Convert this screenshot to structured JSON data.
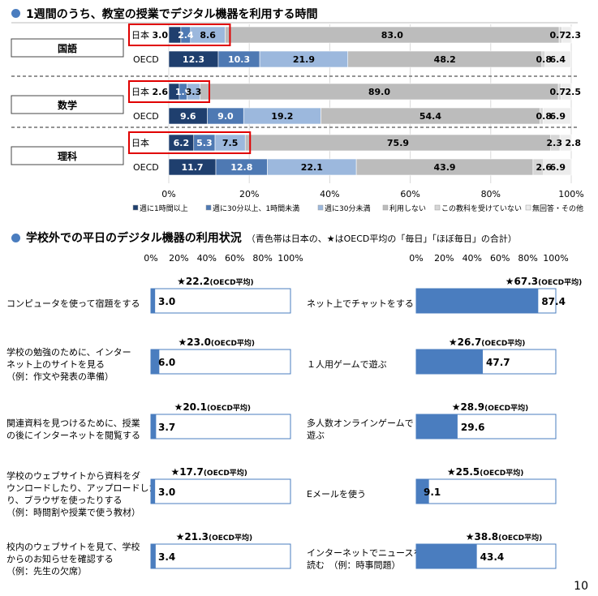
{
  "section1": {
    "title": "1週間のうち、教室の授業でデジタル機器を利用する時間"
  },
  "section2": {
    "title": "学校外での平日のデジタル機器の利用状況",
    "note": "（青色帯は日本の、★はOECD平均の「毎日」「ほぼ毎日」の合計）"
  },
  "page_number": "10",
  "colors": {
    "c1": "#1f3f6e",
    "c2": "#4e79b3",
    "c3": "#9cb8dd",
    "c4": "#bcbcbc",
    "c5": "#d6d6d6",
    "c6": "#ececec",
    "blue": "#4a7dbf",
    "highlight": "#e00000"
  },
  "chart_data": [
    {
      "type": "bar",
      "stacked": true,
      "orientation": "horizontal",
      "title": "1週間のうち、教室の授業でデジタル機器を利用する時間",
      "xlim": [
        0,
        100
      ],
      "x_ticks": [
        "0%",
        "20%",
        "40%",
        "60%",
        "80%",
        "100%"
      ],
      "legend_position": "bottom",
      "series_names": [
        "週に1時間以上",
        "週に30分以上、1時間未満",
        "週に30分未満",
        "利用しない",
        "この教科を受けていない",
        "無回答・その他"
      ],
      "groups": [
        {
          "subject": "国語",
          "rows": [
            {
              "label": "日本",
              "values": [
                3.0,
                2.4,
                8.6,
                83.0,
                0.7,
                2.3
              ],
              "highlight": true
            },
            {
              "label": "OECD",
              "values": [
                12.3,
                10.3,
                21.9,
                48.2,
                0.8,
                6.4
              ],
              "highlight": false
            }
          ]
        },
        {
          "subject": "数学",
          "rows": [
            {
              "label": "日本",
              "values": [
                2.6,
                1.9,
                3.3,
                89.0,
                0.7,
                2.5
              ],
              "highlight": true
            },
            {
              "label": "OECD",
              "values": [
                9.6,
                9.0,
                19.2,
                54.4,
                0.8,
                6.9
              ],
              "highlight": false
            }
          ]
        },
        {
          "subject": "理科",
          "rows": [
            {
              "label": "日本",
              "values": [
                6.2,
                5.3,
                7.5,
                75.9,
                2.3,
                2.8
              ],
              "highlight": true
            },
            {
              "label": "OECD",
              "values": [
                11.7,
                12.8,
                22.1,
                43.9,
                2.6,
                6.9
              ],
              "highlight": false
            }
          ]
        }
      ]
    },
    {
      "type": "bar",
      "orientation": "horizontal",
      "title": "学校外での平日のデジタル機器の利用状況",
      "xlim": [
        0,
        100
      ],
      "x_ticks": [
        "0%",
        "20%",
        "40%",
        "60%",
        "80%",
        "100%"
      ],
      "oecd_suffix": "(OECD平均)",
      "columns": [
        [
          {
            "label": [
              "コンピュータを使って宿題をする"
            ],
            "japan": 3.0,
            "oecd": 22.2
          },
          {
            "label": [
              "学校の勉強のために、インター",
              "ネット上のサイトを見る",
              "（例：作文や発表の準備）"
            ],
            "japan": 6.0,
            "oecd": 23.0
          },
          {
            "label": [
              "関連資料を見つけるために、授業",
              "の後にインターネットを閲覧する"
            ],
            "japan": 3.7,
            "oecd": 20.1
          },
          {
            "label": [
              "学校のウェブサイトから資料をダ",
              "ウンロードしたり、アップロードした",
              "り、ブラウザを使ったりする",
              "（例：時間割や授業で使う教材）"
            ],
            "japan": 3.0,
            "oecd": 17.7
          },
          {
            "label": [
              "校内のウェブサイトを見て、学校",
              "からのお知らせを確認する",
              "（例：先生の欠席）"
            ],
            "japan": 3.4,
            "oecd": 21.3
          }
        ],
        [
          {
            "label": [
              "ネット上でチャットをする"
            ],
            "japan": 87.4,
            "oecd": 67.3
          },
          {
            "label": [
              "１人用ゲームで遊ぶ"
            ],
            "japan": 47.7,
            "oecd": 26.7
          },
          {
            "label": [
              "多人数オンラインゲームで",
              "遊ぶ"
            ],
            "japan": 29.6,
            "oecd": 28.9
          },
          {
            "label": [
              "Eメールを使う"
            ],
            "japan": 9.1,
            "oecd": 25.5
          },
          {
            "label": [
              "インターネットでニュースを",
              "読む　（例：時事問題）"
            ],
            "japan": 43.4,
            "oecd": 38.8
          }
        ]
      ]
    }
  ]
}
